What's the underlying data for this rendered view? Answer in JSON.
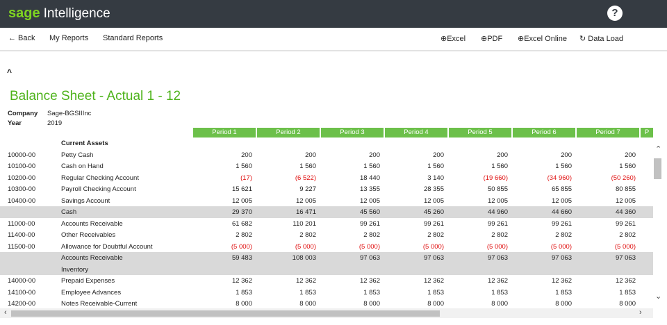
{
  "brand": {
    "sage": "sage",
    "product": "Intelligence"
  },
  "help_label": "?",
  "toolbar": {
    "back": "← Back",
    "my_reports": "My Reports",
    "standard_reports": "Standard Reports",
    "excel": "Excel",
    "pdf": "PDF",
    "excel_online": "Excel Online",
    "data_load": "Data Load"
  },
  "report": {
    "title": "Balance Sheet - Actual 1 - 12",
    "company_label": "Company",
    "company": "Sage-BGSIIInc",
    "year_label": "Year",
    "year": "2019",
    "periods": [
      "Period 1",
      "Period 2",
      "Period 3",
      "Period 4",
      "Period 5",
      "Period 6",
      "Period 7",
      "P"
    ],
    "rows": [
      {
        "code": "",
        "name": "Current Assets",
        "values": [],
        "type": "header"
      },
      {
        "code": "10000-00",
        "name": "Petty Cash",
        "values": [
          "200",
          "200",
          "200",
          "200",
          "200",
          "200",
          "200"
        ],
        "neg": [
          false,
          false,
          false,
          false,
          false,
          false,
          false
        ]
      },
      {
        "code": "10100-00",
        "name": "Cash on Hand",
        "values": [
          "1 560",
          "1 560",
          "1 560",
          "1 560",
          "1 560",
          "1 560",
          "1 560"
        ],
        "neg": [
          false,
          false,
          false,
          false,
          false,
          false,
          false
        ]
      },
      {
        "code": "10200-00",
        "name": "Regular Checking Account",
        "values": [
          "(17)",
          "(6 522)",
          "18 440",
          "3 140",
          "(19 660)",
          "(34 960)",
          "(50 260)"
        ],
        "neg": [
          true,
          true,
          false,
          false,
          true,
          true,
          true
        ]
      },
      {
        "code": "10300-00",
        "name": "Payroll Checking Account",
        "values": [
          "15 621",
          "9 227",
          "13 355",
          "28 355",
          "50 855",
          "65 855",
          "80 855"
        ],
        "neg": [
          false,
          false,
          false,
          false,
          false,
          false,
          false
        ]
      },
      {
        "code": "10400-00",
        "name": "Savings Account",
        "values": [
          "12 005",
          "12 005",
          "12 005",
          "12 005",
          "12 005",
          "12 005",
          "12 005"
        ],
        "neg": [
          false,
          false,
          false,
          false,
          false,
          false,
          false
        ]
      },
      {
        "code": "",
        "name": "Cash",
        "values": [
          "29 370",
          "16 471",
          "45 560",
          "45 260",
          "44 960",
          "44 660",
          "44 360"
        ],
        "neg": [
          false,
          false,
          false,
          false,
          false,
          false,
          false
        ],
        "type": "sub"
      },
      {
        "code": "11000-00",
        "name": "Accounts Receivable",
        "values": [
          "61 682",
          "110 201",
          "99 261",
          "99 261",
          "99 261",
          "99 261",
          "99 261"
        ],
        "neg": [
          false,
          false,
          false,
          false,
          false,
          false,
          false
        ]
      },
      {
        "code": "11400-00",
        "name": "Other Receivables",
        "values": [
          "2 802",
          "2 802",
          "2 802",
          "2 802",
          "2 802",
          "2 802",
          "2 802"
        ],
        "neg": [
          false,
          false,
          false,
          false,
          false,
          false,
          false
        ]
      },
      {
        "code": "11500-00",
        "name": "Allowance for Doubtful Account",
        "values": [
          "(5 000)",
          "(5 000)",
          "(5 000)",
          "(5 000)",
          "(5 000)",
          "(5 000)",
          "(5 000)"
        ],
        "neg": [
          true,
          true,
          true,
          true,
          true,
          true,
          true
        ]
      },
      {
        "code": "",
        "name": "Accounts Receivable",
        "name2": "Inventory",
        "values": [
          "59 483",
          "108 003",
          "97 063",
          "97 063",
          "97 063",
          "97 063",
          "97 063"
        ],
        "neg": [
          false,
          false,
          false,
          false,
          false,
          false,
          false
        ],
        "type": "sub2"
      },
      {
        "code": "14000-00",
        "name": "Prepaid Expenses",
        "values": [
          "12 362",
          "12 362",
          "12 362",
          "12 362",
          "12 362",
          "12 362",
          "12 362"
        ],
        "neg": [
          false,
          false,
          false,
          false,
          false,
          false,
          false
        ]
      },
      {
        "code": "14100-00",
        "name": "Employee Advances",
        "values": [
          "1 853",
          "1 853",
          "1 853",
          "1 853",
          "1 853",
          "1 853",
          "1 853"
        ],
        "neg": [
          false,
          false,
          false,
          false,
          false,
          false,
          false
        ]
      },
      {
        "code": "14200-00",
        "name": "Notes Receivable-Current",
        "values": [
          "8 000",
          "8 000",
          "8 000",
          "8 000",
          "8 000",
          "8 000",
          "8 000"
        ],
        "neg": [
          false,
          false,
          false,
          false,
          false,
          false,
          false
        ]
      }
    ]
  }
}
